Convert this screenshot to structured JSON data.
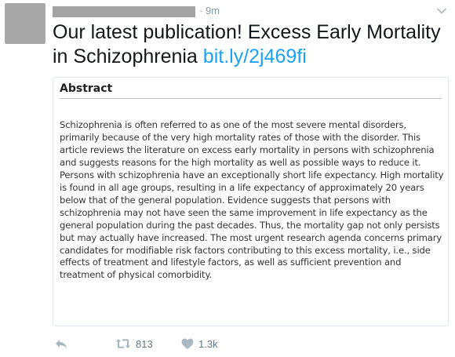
{
  "tweet": {
    "time": "· 9m",
    "text": "Our latest publication! Excess Early Mortality in Schizophrenia",
    "link": "bit.ly/2j469fi",
    "card": {
      "title": "Abstract",
      "body": "Schizophrenia is often referred to as one of the most severe mental disorders, primarily because of the very high mortality rates of those with the disorder. This article reviews the literature on excess early mortality in persons with schizophrenia and suggests reasons for the high mortality as well as possible ways to reduce it. Persons with schizophrenia have an exceptionally short life expectancy. High mortality is found in all age groups, resulting in a life expectancy of approximately 20 years below that of the general population. Evidence suggests that persons with schizophrenia may not have seen the same improvement in life expectancy as the general population during the past decades. Thus, the mortality gap not only persists but may actually have increased. The most urgent research agenda concerns primary candidates for modifiable risk factors contributing to this excess mortality, i.e., side effects of treatment and lifestyle factors, as well as sufficient prevention and treatment of physical comorbidity."
    },
    "actions": {
      "retweet_count": "813",
      "like_count": "1.3k"
    },
    "icons": {
      "reply": "reply-icon",
      "retweet": "retweet-icon",
      "like": "heart-icon",
      "menu": "chevron-down-icon"
    },
    "colors": {
      "link": "#1da1f2",
      "meta": "#8899a6",
      "redaction": "#a3a3a3"
    }
  }
}
